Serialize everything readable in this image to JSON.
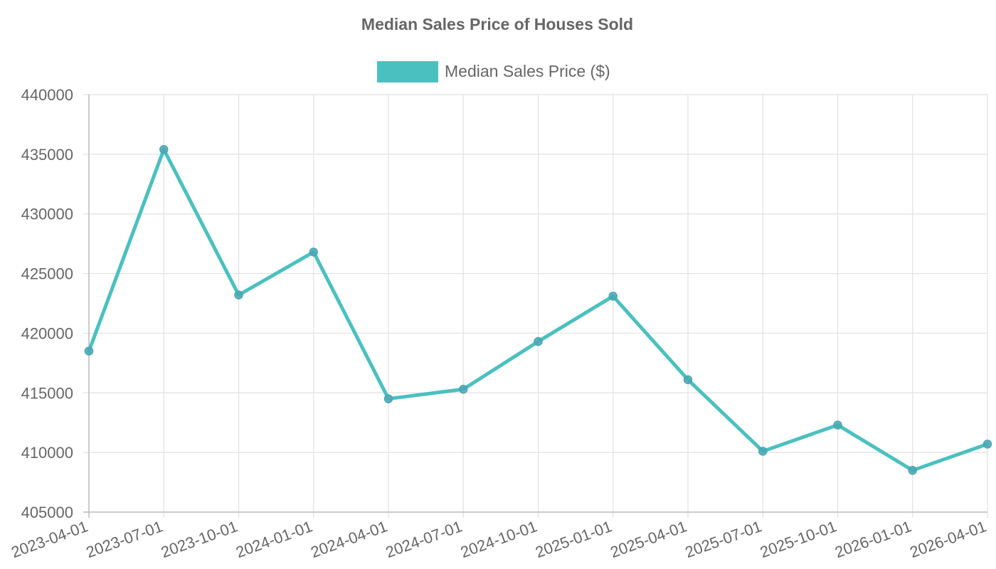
{
  "chart_data": {
    "type": "line",
    "title": "Median Sales Price of Houses Sold",
    "legend_position": "top-center",
    "grid": true,
    "x": [
      "2023-04-01",
      "2023-07-01",
      "2023-10-01",
      "2024-01-01",
      "2024-04-01",
      "2024-07-01",
      "2024-10-01",
      "2025-01-01",
      "2025-04-01",
      "2025-07-01",
      "2025-10-01",
      "2026-01-01",
      "2026-04-01"
    ],
    "ylim": [
      405000,
      440000
    ],
    "y_ticks": [
      "440000",
      "435000",
      "430000",
      "425000",
      "420000",
      "415000",
      "410000",
      "405000"
    ],
    "series": [
      {
        "name": "Median Sales Price ($)",
        "color": "#4bc0c0",
        "values": [
          418500,
          435400,
          423200,
          426800,
          414500,
          415300,
          419300,
          423100,
          416100,
          410100,
          412300,
          408500,
          410700
        ]
      }
    ]
  }
}
